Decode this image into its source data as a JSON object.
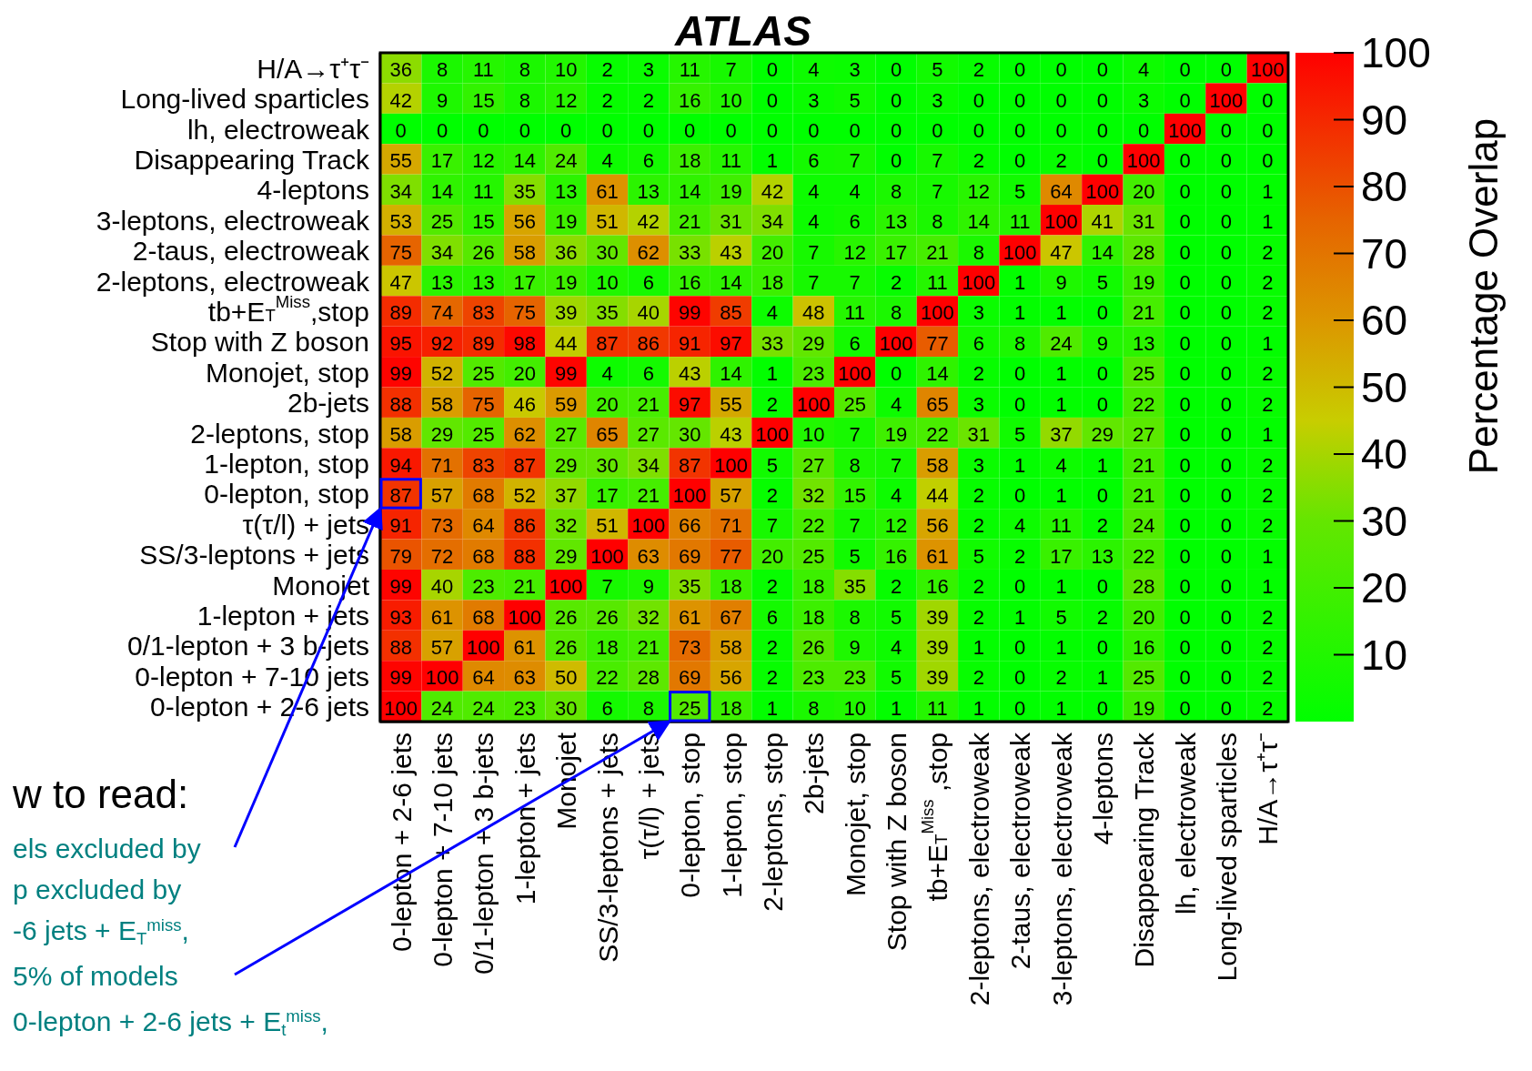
{
  "chart_data": {
    "type": "heatmap",
    "title": "ATLAS",
    "clabel": "Percentage Overlap",
    "categories": [
      "0-lepton + 2-6 jets",
      "0-lepton + 7-10 jets",
      "0/1-lepton + 3 b-jets",
      "1-lepton + jets",
      "Monojet",
      "SS/3-leptons + jets",
      "τ(τ/l) + jets",
      "0-lepton, stop",
      "1-lepton, stop",
      "2-leptons, stop",
      "2b-jets",
      "Monojet, stop",
      "Stop with Z boson",
      "tb+E$_{T}$$^{Miss}$ ,stop",
      "2-leptons, electroweak",
      "2-taus, electroweak",
      "3-leptons, electroweak",
      "4-leptons",
      "Disappearing Track",
      "lh, electroweak",
      "Long-lived sparticles",
      "H/A→τ⁺τ⁻"
    ],
    "y_categories": [
      "H/A→τ⁺τ⁻",
      "Long-lived sparticles",
      "lh, electroweak",
      "Disappearing Track",
      "4-leptons",
      "3-leptons, electroweak",
      "2-taus, electroweak",
      "2-leptons, electroweak",
      "tb+E$_{T}$$^{Miss}$,stop",
      "Stop with Z boson",
      "Monojet, stop",
      "2b-jets",
      "2-leptons, stop",
      "1-lepton, stop",
      "0-lepton, stop",
      "τ(τ/l) + jets",
      "SS/3-leptons + jets",
      "Monojet",
      "1-lepton + jets",
      "0/1-lepton + 3 b-jets",
      "0-lepton + 7-10 jets",
      "0-lepton + 2-6 jets"
    ],
    "cells": [
      [
        36,
        8,
        11,
        8,
        10,
        2,
        3,
        11,
        7,
        0,
        4,
        3,
        0,
        5,
        2,
        0,
        0,
        0,
        4,
        0,
        0,
        100
      ],
      [
        42,
        9,
        15,
        8,
        12,
        2,
        2,
        16,
        10,
        0,
        3,
        5,
        0,
        3,
        0,
        0,
        0,
        0,
        3,
        0,
        100,
        0
      ],
      [
        0,
        0,
        0,
        0,
        0,
        0,
        0,
        0,
        0,
        0,
        0,
        0,
        0,
        0,
        0,
        0,
        0,
        0,
        0,
        100,
        0,
        0
      ],
      [
        55,
        17,
        12,
        14,
        24,
        4,
        6,
        18,
        11,
        1,
        6,
        7,
        0,
        7,
        2,
        0,
        2,
        0,
        100,
        0,
        0,
        0
      ],
      [
        34,
        14,
        11,
        35,
        13,
        61,
        13,
        14,
        19,
        42,
        4,
        4,
        8,
        7,
        12,
        5,
        64,
        100,
        20,
        0,
        0,
        1
      ],
      [
        53,
        25,
        15,
        56,
        19,
        51,
        42,
        21,
        31,
        34,
        4,
        6,
        13,
        8,
        14,
        11,
        100,
        41,
        31,
        0,
        0,
        1
      ],
      [
        75,
        34,
        26,
        58,
        36,
        30,
        62,
        33,
        43,
        20,
        7,
        12,
        17,
        21,
        8,
        100,
        47,
        14,
        28,
        0,
        0,
        2
      ],
      [
        47,
        13,
        13,
        17,
        19,
        10,
        6,
        16,
        14,
        18,
        7,
        7,
        2,
        11,
        100,
        1,
        9,
        5,
        19,
        0,
        0,
        2
      ],
      [
        89,
        74,
        83,
        75,
        39,
        35,
        40,
        99,
        85,
        4,
        48,
        11,
        8,
        100,
        3,
        1,
        1,
        0,
        21,
        0,
        0,
        2
      ],
      [
        95,
        92,
        89,
        98,
        44,
        87,
        86,
        91,
        97,
        33,
        29,
        6,
        100,
        77,
        6,
        8,
        24,
        9,
        13,
        0,
        0,
        1
      ],
      [
        99,
        52,
        25,
        20,
        99,
        4,
        6,
        43,
        14,
        1,
        23,
        100,
        0,
        14,
        2,
        0,
        1,
        0,
        25,
        0,
        0,
        2
      ],
      [
        88,
        58,
        75,
        46,
        59,
        20,
        21,
        97,
        55,
        2,
        100,
        25,
        4,
        65,
        3,
        0,
        1,
        0,
        22,
        0,
        0,
        2
      ],
      [
        58,
        29,
        25,
        62,
        27,
        65,
        27,
        30,
        43,
        100,
        10,
        7,
        19,
        22,
        31,
        5,
        37,
        29,
        27,
        0,
        0,
        1
      ],
      [
        94,
        71,
        83,
        87,
        29,
        30,
        34,
        87,
        100,
        5,
        27,
        8,
        7,
        58,
        3,
        1,
        4,
        1,
        21,
        0,
        0,
        2
      ],
      [
        87,
        57,
        68,
        52,
        37,
        17,
        21,
        100,
        57,
        2,
        32,
        15,
        4,
        44,
        2,
        0,
        1,
        0,
        21,
        0,
        0,
        2
      ],
      [
        91,
        73,
        64,
        86,
        32,
        51,
        100,
        66,
        71,
        7,
        22,
        7,
        12,
        56,
        2,
        4,
        11,
        2,
        24,
        0,
        0,
        2
      ],
      [
        79,
        72,
        68,
        88,
        29,
        100,
        63,
        69,
        77,
        20,
        25,
        5,
        16,
        61,
        5,
        2,
        17,
        13,
        22,
        0,
        0,
        1
      ],
      [
        99,
        40,
        23,
        21,
        100,
        7,
        9,
        35,
        18,
        2,
        18,
        35,
        2,
        16,
        2,
        0,
        1,
        0,
        28,
        0,
        0,
        1
      ],
      [
        93,
        61,
        68,
        100,
        26,
        26,
        32,
        61,
        67,
        6,
        18,
        8,
        5,
        39,
        2,
        1,
        5,
        2,
        20,
        0,
        0,
        2
      ],
      [
        88,
        57,
        100,
        61,
        26,
        18,
        21,
        73,
        58,
        2,
        26,
        9,
        4,
        39,
        1,
        0,
        1,
        0,
        16,
        0,
        0,
        2
      ],
      [
        99,
        100,
        64,
        63,
        50,
        22,
        28,
        69,
        56,
        2,
        23,
        23,
        5,
        39,
        2,
        0,
        2,
        1,
        25,
        0,
        0,
        2
      ],
      [
        100,
        24,
        24,
        23,
        30,
        6,
        8,
        25,
        18,
        1,
        8,
        10,
        1,
        11,
        1,
        0,
        1,
        0,
        19,
        0,
        0,
        2
      ]
    ],
    "data_labels": true,
    "clim": [
      0,
      100
    ],
    "cticks": [
      10,
      20,
      30,
      40,
      50,
      60,
      70,
      80,
      90,
      100
    ],
    "annotations": [
      "w to read:",
      "els excluded by",
      "p excluded by",
      "-6 jets + E$_{T}$$^{miss}$,",
      "5% of models",
      "0-lepton + 2-6 jets + E$_{t}$$^{miss}$,"
    ]
  }
}
